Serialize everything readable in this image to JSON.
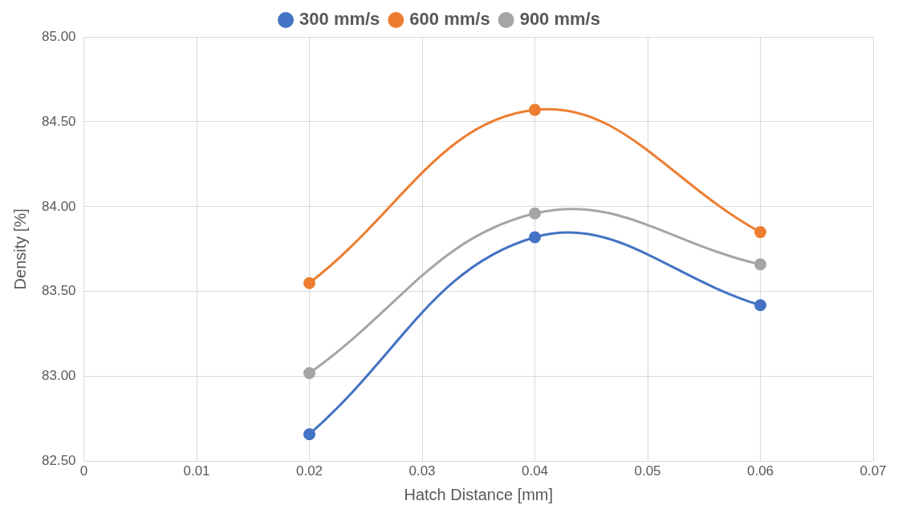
{
  "chart_data": {
    "type": "line",
    "xlabel": "Hatch Distance [mm]",
    "ylabel": "Density [%]",
    "xlim": [
      0,
      0.07
    ],
    "xticks": [
      0,
      0.01,
      0.02,
      0.03,
      0.04,
      0.05,
      0.06,
      0.07
    ],
    "ylim": [
      82.5,
      85
    ],
    "yticks": [
      {
        "value": 82.5,
        "label": "82.50"
      },
      {
        "value": 83,
        "label": "83.00"
      },
      {
        "value": 83.5,
        "label": "83.50"
      },
      {
        "value": 84,
        "label": "84.00"
      },
      {
        "value": 84.5,
        "label": "84.50"
      },
      {
        "value": 85,
        "label": "85.00"
      }
    ],
    "x": [
      0.02,
      0.04,
      0.06
    ],
    "series": [
      {
        "name": "300 mm/s",
        "color": "#4472c4",
        "values": [
          82.66,
          83.82,
          83.42
        ]
      },
      {
        "name": "600 mm/s",
        "color": "#ed7d31",
        "values": [
          83.55,
          84.57,
          83.85
        ]
      },
      {
        "name": "900 mm/s",
        "color": "#a5a5a5",
        "values": [
          83.02,
          83.96,
          83.66
        ]
      }
    ],
    "grid": true,
    "legend": "top",
    "marker": "circle",
    "line_style": "solid"
  }
}
